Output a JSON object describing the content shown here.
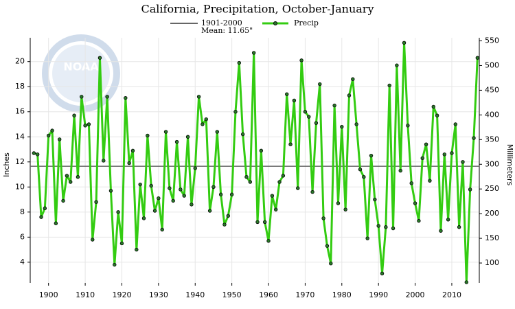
{
  "chart_data": {
    "type": "line",
    "title": "California, Precipitation, October-January",
    "logo_text": "NOAA",
    "y_label": "Inches",
    "y2_label": "Millimeters",
    "mean": {
      "period": "1901-2000",
      "value": 11.65,
      "label": "Mean: 11.65\"",
      "color": "#666666"
    },
    "x": [
      1896,
      1897,
      1898,
      1899,
      1900,
      1901,
      1902,
      1903,
      1904,
      1905,
      1906,
      1907,
      1908,
      1909,
      1910,
      1911,
      1912,
      1913,
      1914,
      1915,
      1916,
      1917,
      1918,
      1919,
      1920,
      1921,
      1922,
      1923,
      1924,
      1925,
      1926,
      1927,
      1928,
      1929,
      1930,
      1931,
      1932,
      1933,
      1934,
      1935,
      1936,
      1937,
      1938,
      1939,
      1940,
      1941,
      1942,
      1943,
      1944,
      1945,
      1946,
      1947,
      1948,
      1949,
      1950,
      1951,
      1952,
      1953,
      1954,
      1955,
      1956,
      1957,
      1958,
      1959,
      1960,
      1961,
      1962,
      1963,
      1964,
      1965,
      1966,
      1967,
      1968,
      1969,
      1970,
      1971,
      1972,
      1973,
      1974,
      1975,
      1976,
      1977,
      1978,
      1979,
      1980,
      1981,
      1982,
      1983,
      1984,
      1985,
      1986,
      1987,
      1988,
      1989,
      1990,
      1991,
      1992,
      1993,
      1994,
      1995,
      1996,
      1997,
      1998,
      1999,
      2000,
      2001,
      2002,
      2003,
      2004,
      2005,
      2006,
      2007,
      2008,
      2009,
      2010,
      2011,
      2012,
      2013,
      2014,
      2015,
      2016,
      2017
    ],
    "series": [
      {
        "name": "Precip",
        "color": "#33cc11",
        "values": [
          12.7,
          12.6,
          7.6,
          8.3,
          14.1,
          14.5,
          7.1,
          13.8,
          8.9,
          10.9,
          10.4,
          15.7,
          10.8,
          17.2,
          14.9,
          15.0,
          5.8,
          8.8,
          20.3,
          12.1,
          17.2,
          9.7,
          3.8,
          8.0,
          5.5,
          17.1,
          11.9,
          12.9,
          5.0,
          10.2,
          7.5,
          14.1,
          10.1,
          8.1,
          9.1,
          6.6,
          14.4,
          9.9,
          8.9,
          13.6,
          9.8,
          9.3,
          14.0,
          8.6,
          11.5,
          17.2,
          15.0,
          15.4,
          8.1,
          10.0,
          14.4,
          9.4,
          7.0,
          7.7,
          9.4,
          16.0,
          19.9,
          14.2,
          10.8,
          10.4,
          20.7,
          7.2,
          12.9,
          7.2,
          5.7,
          9.3,
          8.2,
          10.4,
          10.9,
          17.4,
          13.4,
          16.9,
          9.9,
          20.1,
          16.0,
          15.6,
          9.6,
          15.1,
          18.2,
          7.5,
          5.3,
          3.9,
          16.5,
          8.7,
          14.8,
          8.2,
          17.3,
          18.6,
          15.0,
          11.4,
          10.8,
          5.9,
          12.5,
          9.0,
          6.9,
          3.1,
          6.8,
          18.1,
          6.7,
          19.7,
          11.3,
          21.5,
          14.9,
          10.3,
          8.7,
          7.3,
          12.3,
          13.4,
          10.5,
          16.4,
          15.7,
          6.5,
          12.6,
          7.4,
          12.7,
          15.0,
          6.8,
          12.0,
          2.4,
          9.8,
          13.9,
          20.3
        ]
      }
    ],
    "xlim": [
      1895,
      2017.5
    ],
    "xticks": [
      1900,
      1910,
      1920,
      1930,
      1940,
      1950,
      1960,
      1970,
      1980,
      1990,
      2000,
      2010
    ],
    "ylim": [
      2.35,
      21.9
    ],
    "yticks": [
      4,
      6,
      8,
      10,
      12,
      14,
      16,
      18,
      20
    ],
    "y2lim": [
      59.7,
      556.3
    ],
    "y2ticks": [
      100,
      150,
      200,
      250,
      300,
      350,
      400,
      450,
      500,
      550
    ],
    "grid": true
  }
}
